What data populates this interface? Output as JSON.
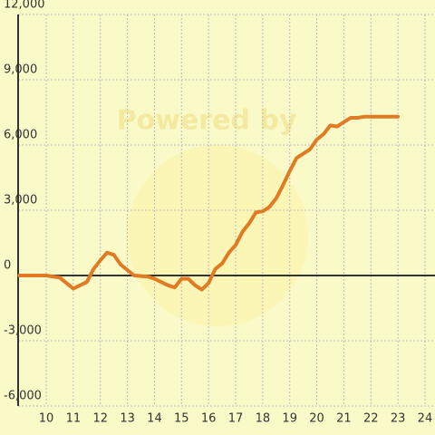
{
  "chart_data": {
    "type": "line",
    "watermark": "Powered by",
    "x": [
      9,
      10,
      10.5,
      11,
      11.5,
      11.75,
      12,
      12.25,
      12.5,
      12.75,
      13,
      13.25,
      13.75,
      14,
      14.25,
      14.5,
      14.75,
      15,
      15.25,
      15.5,
      15.75,
      16,
      16.25,
      16.5,
      16.75,
      17,
      17.25,
      17.5,
      17.75,
      18,
      18.25,
      18.5,
      18.75,
      19,
      19.25,
      19.5,
      19.75,
      20,
      20.25,
      20.5,
      20.75,
      21,
      21.25,
      21.5,
      21.75,
      22,
      22.5,
      23
    ],
    "series": [
      {
        "color": "#e07b24",
        "values": [
          0,
          0,
          -100,
          -600,
          -300,
          300,
          700,
          1050,
          950,
          500,
          250,
          0,
          -50,
          -150,
          -300,
          -450,
          -550,
          -150,
          -150,
          -450,
          -650,
          -350,
          300,
          550,
          1050,
          1400,
          2000,
          2400,
          2900,
          2950,
          3150,
          3550,
          4150,
          4800,
          5400,
          5600,
          5800,
          6250,
          6500,
          6900,
          6850,
          7050,
          7250,
          7250,
          7300,
          7300,
          7300,
          7300
        ]
      }
    ],
    "xlim": [
      8.96,
      24.37
    ],
    "xticks": [
      10,
      11,
      12,
      13,
      14,
      15,
      16,
      17,
      18,
      19,
      20,
      21,
      22,
      23,
      24
    ],
    "ylim": [
      -6000,
      12000
    ],
    "yticks": [
      {
        "value": -6000,
        "label": "-6,000"
      },
      {
        "value": -3000,
        "label": "-3,000"
      },
      0,
      {
        "value": 3000,
        "label": "3,000"
      },
      {
        "value": 6000,
        "label": "6,000"
      },
      {
        "value": 9000,
        "label": "9,000"
      },
      {
        "value": 12000,
        "label": "12,000"
      }
    ],
    "grid": true
  }
}
